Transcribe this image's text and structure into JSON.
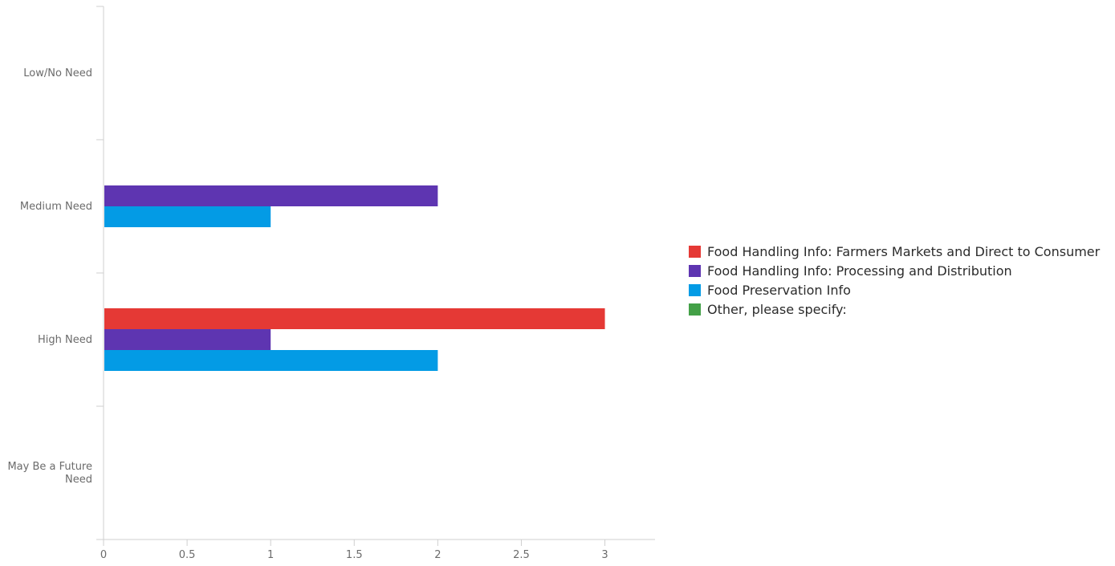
{
  "chart_data": {
    "type": "bar",
    "orientation": "horizontal",
    "categories": [
      "Low/No Need",
      "Medium Need",
      "High Need",
      "May Be a Future Need"
    ],
    "series": [
      {
        "name": "Food Handling Info: Farmers Markets and Direct to Consumer",
        "color": "#e53935",
        "values": [
          0,
          0,
          3,
          0
        ]
      },
      {
        "name": "Food Handling Info: Processing and Distribution",
        "color": "#5e35b1",
        "values": [
          0,
          2,
          1,
          0
        ]
      },
      {
        "name": "Food Preservation Info",
        "color": "#039be5",
        "values": [
          0,
          1,
          2,
          0
        ]
      },
      {
        "name": "Other, please specify:",
        "color": "#43a047",
        "values": [
          0,
          0,
          0,
          0
        ]
      }
    ],
    "xticks": [
      "0",
      "0.5",
      "1",
      "1.5",
      "2",
      "2.5",
      "3"
    ],
    "xlim": [
      0,
      3.3
    ],
    "grid": false,
    "legend_position": "right"
  }
}
